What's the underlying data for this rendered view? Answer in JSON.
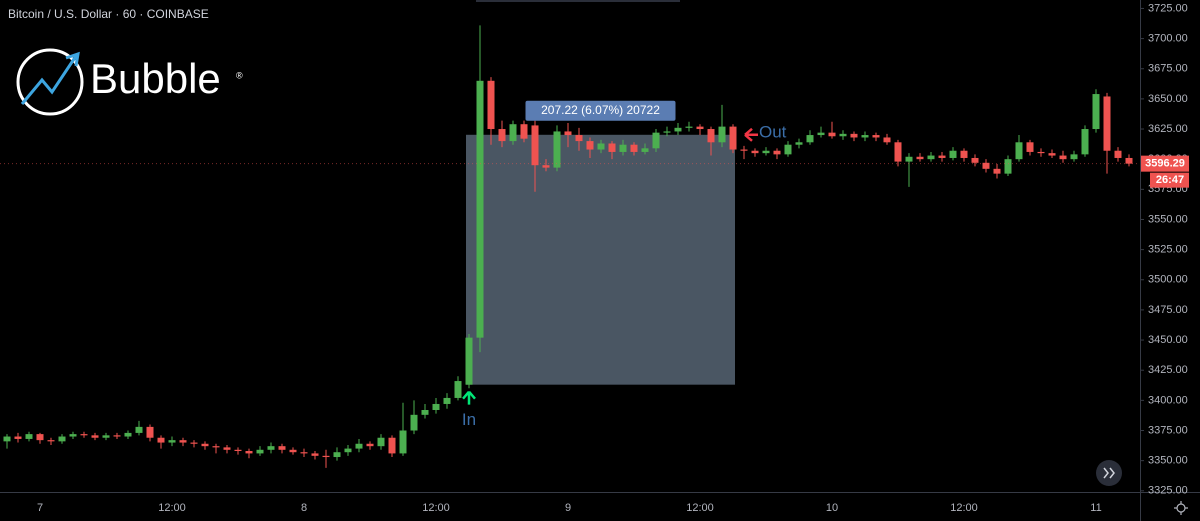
{
  "chart_data": {
    "type": "candlestick",
    "title": "Bitcoin / U.S. Dollar · 60 · COINBASE",
    "categories": [
      null,
      null,
      null,
      "7",
      null,
      null,
      null,
      null,
      null,
      null,
      null,
      null,
      null,
      null,
      null,
      "12:00",
      null,
      null,
      null,
      null,
      null,
      null,
      null,
      null,
      null,
      null,
      null,
      "8",
      null,
      null,
      null,
      null,
      null,
      null,
      null,
      null,
      null,
      null,
      null,
      "12:00",
      null,
      null,
      null,
      null,
      null,
      null,
      null,
      null,
      null,
      null,
      null,
      "9",
      null,
      null,
      null,
      null,
      null,
      null,
      null,
      null,
      null,
      null,
      null,
      "12:00",
      null,
      null,
      null,
      null,
      null,
      null,
      null,
      null,
      null,
      null,
      null,
      "10",
      null,
      null,
      null,
      null,
      null,
      null,
      null,
      null,
      null,
      null,
      null,
      "12:00",
      null,
      null,
      null,
      null,
      null,
      null,
      null,
      null,
      null,
      null,
      null,
      "11",
      null,
      null,
      null
    ],
    "open": [
      3366,
      3370,
      3368,
      3372,
      3367,
      3366,
      3370,
      3372,
      3371,
      3369,
      3371,
      3370,
      3373,
      3378,
      3369,
      3365,
      3367,
      3365,
      3364,
      3362,
      3361,
      3359,
      3358,
      3356,
      3359,
      3362,
      3359,
      3357,
      3356,
      3354,
      3353,
      3357,
      3360,
      3364,
      3362,
      3369,
      3356,
      3375,
      3388,
      3392,
      3397,
      3402,
      3413,
      3452,
      3665,
      3625,
      3615,
      3629,
      3628,
      3595,
      3593,
      3623,
      3620,
      3615,
      3608,
      3613,
      3606,
      3612,
      3606,
      3609,
      3622,
      3623,
      3626,
      3627,
      3625,
      3614,
      3627,
      3608,
      3607,
      3605,
      3607,
      3604,
      3612,
      3614,
      3620,
      3622,
      3619,
      3621,
      3618,
      3620,
      3618,
      3614,
      3598,
      3602,
      3600,
      3603,
      3601,
      3607,
      3601,
      3597,
      3592,
      3588,
      3600,
      3614,
      3606,
      3605,
      3603,
      3600,
      3604,
      3625,
      3652,
      3607,
      3601
    ],
    "high": [
      3372,
      3373,
      3374,
      3373,
      3369,
      3372,
      3374,
      3374,
      3373,
      3373,
      3373,
      3375,
      3383,
      3380,
      3371,
      3370,
      3369,
      3367,
      3366,
      3364,
      3363,
      3361,
      3360,
      3362,
      3365,
      3364,
      3361,
      3360,
      3358,
      3359,
      3361,
      3363,
      3368,
      3366,
      3372,
      3371,
      3398,
      3400,
      3397,
      3402,
      3406,
      3420,
      3455,
      3711,
      3668,
      3632,
      3632,
      3632,
      3632,
      3600,
      3628,
      3630,
      3626,
      3618,
      3616,
      3615,
      3616,
      3614,
      3613,
      3625,
      3627,
      3630,
      3631,
      3629,
      3627,
      3645,
      3629,
      3611,
      3609,
      3610,
      3609,
      3615,
      3617,
      3624,
      3627,
      3631,
      3624,
      3623,
      3623,
      3622,
      3621,
      3616,
      3605,
      3605,
      3606,
      3606,
      3610,
      3609,
      3604,
      3600,
      3596,
      3603,
      3620,
      3616,
      3609,
      3608,
      3607,
      3607,
      3628,
      3658,
      3655,
      3610,
      3604
    ],
    "low": [
      3360,
      3365,
      3366,
      3364,
      3363,
      3364,
      3368,
      3369,
      3367,
      3367,
      3368,
      3368,
      3371,
      3366,
      3360,
      3362,
      3362,
      3361,
      3359,
      3356,
      3356,
      3355,
      3352,
      3354,
      3356,
      3356,
      3355,
      3353,
      3351,
      3344,
      3350,
      3354,
      3357,
      3359,
      3359,
      3353,
      3354,
      3372,
      3385,
      3389,
      3393,
      3400,
      3410,
      3440,
      3612,
      3610,
      3612,
      3614,
      3573,
      3590,
      3590,
      3610,
      3607,
      3601,
      3605,
      3600,
      3603,
      3603,
      3604,
      3606,
      3619,
      3620,
      3623,
      3620,
      3603,
      3610,
      3605,
      3600,
      3602,
      3603,
      3600,
      3602,
      3609,
      3612,
      3618,
      3617,
      3616,
      3615,
      3615,
      3615,
      3612,
      3594,
      3577,
      3598,
      3598,
      3598,
      3599,
      3598,
      3594,
      3589,
      3584,
      3586,
      3598,
      3603,
      3602,
      3601,
      3597,
      3598,
      3602,
      3622,
      3588,
      3598,
      3594
    ],
    "close": [
      3370,
      3368,
      3372,
      3367,
      3366,
      3370,
      3372,
      3371,
      3369,
      3371,
      3370,
      3373,
      3378,
      3369,
      3365,
      3367,
      3365,
      3364,
      3362,
      3361,
      3359,
      3358,
      3356,
      3359,
      3362,
      3359,
      3357,
      3356,
      3354,
      3353,
      3357,
      3360,
      3364,
      3362,
      3369,
      3356,
      3375,
      3388,
      3392,
      3397,
      3402,
      3416,
      3452,
      3665,
      3625,
      3615,
      3629,
      3617,
      3595,
      3593,
      3623,
      3620,
      3615,
      3608,
      3613,
      3606,
      3612,
      3606,
      3609,
      3622,
      3623,
      3626,
      3627,
      3625,
      3614,
      3627,
      3608,
      3607,
      3605,
      3607,
      3604,
      3612,
      3614,
      3620,
      3622,
      3619,
      3621,
      3618,
      3620,
      3618,
      3614,
      3598,
      3602,
      3600,
      3603,
      3601,
      3607,
      3601,
      3597,
      3592,
      3588,
      3600,
      3614,
      3606,
      3605,
      3603,
      3600,
      3604,
      3625,
      3654,
      3607,
      3601,
      3596.29
    ],
    "up_color": "#4caf50",
    "down_color": "#ef5350",
    "ylim": [
      3324,
      3732
    ],
    "yticks": [
      {
        "value": 3325,
        "label": "3325.00"
      },
      {
        "value": 3350,
        "label": "3350.00"
      },
      {
        "value": 3375,
        "label": "3375.00"
      },
      {
        "value": 3400,
        "label": "3400.00"
      },
      {
        "value": 3425,
        "label": "3425.00"
      },
      {
        "value": 3450,
        "label": "3450.00"
      },
      {
        "value": 3475,
        "label": "3475.00"
      },
      {
        "value": 3500,
        "label": "3500.00"
      },
      {
        "value": 3525,
        "label": "3525.00"
      },
      {
        "value": 3550,
        "label": "3550.00"
      },
      {
        "value": 3575,
        "label": "3575.00"
      },
      {
        "value": 3600,
        "label": "3600.00"
      },
      {
        "value": 3625,
        "label": "3625.00"
      },
      {
        "value": 3650,
        "label": "3650.00"
      },
      {
        "value": 3675,
        "label": "3675.00"
      },
      {
        "value": 3700,
        "label": "3700.00"
      },
      {
        "value": 3725,
        "label": "3725.00"
      }
    ],
    "grid": false,
    "markers": [
      {
        "label": "In",
        "index": 42,
        "price": 3413,
        "color": "#00e676"
      },
      {
        "label": "Out",
        "index": 66,
        "price": 3620.22,
        "color": "#f23645"
      }
    ],
    "measure_label": "207.22 (6.07%) 20722",
    "last_price": 3596.29,
    "countdown": "26:47"
  },
  "logo": {
    "text": "Bubble",
    "mark": "®"
  }
}
